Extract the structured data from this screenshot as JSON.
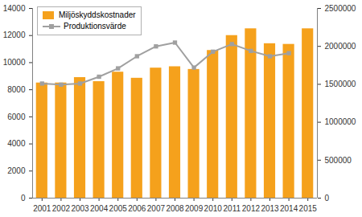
{
  "chart_data": {
    "type": "bar",
    "categories": [
      "2001",
      "2002",
      "2003",
      "2004",
      "2005",
      "2006",
      "2007",
      "2008",
      "2009",
      "2010",
      "2011",
      "2012",
      "2013",
      "2014",
      "2015"
    ],
    "series": [
      {
        "name": "Miljöskyddskostnader",
        "type": "bar",
        "color": "#f5a11c",
        "values": [
          8500,
          8500,
          8900,
          8600,
          9300,
          8850,
          9600,
          9700,
          9500,
          10900,
          12000,
          12500,
          11400,
          11350,
          12500
        ]
      },
      {
        "name": "Produktionsvärde",
        "type": "line",
        "color": "#a0a0a0",
        "marker": "square",
        "axis": "y2",
        "values": [
          1510000,
          1495000,
          1510000,
          1600000,
          1710000,
          1870000,
          2000000,
          2050000,
          1720000,
          1930000,
          2030000,
          1940000,
          1870000,
          1910000,
          null
        ]
      }
    ],
    "ylim": [
      0,
      14000
    ],
    "yticks": [
      0,
      2000,
      4000,
      6000,
      8000,
      10000,
      12000,
      14000
    ],
    "y2lim": [
      0,
      2500000
    ],
    "y2ticks": [
      0,
      500000,
      1000000,
      1500000,
      2000000,
      2500000
    ],
    "legend": "top-left",
    "grid": false
  }
}
